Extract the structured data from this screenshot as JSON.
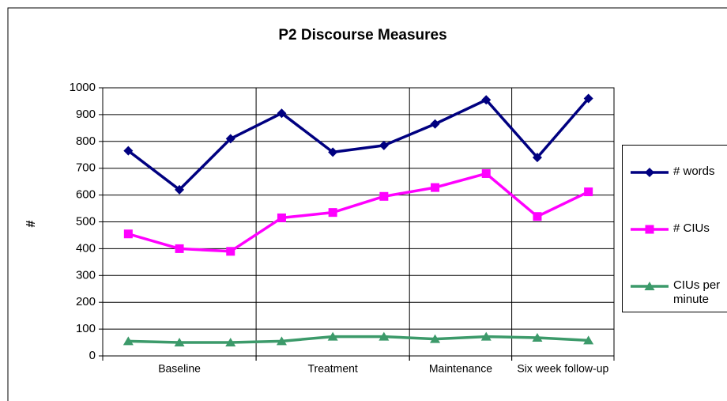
{
  "chart_data": {
    "type": "line",
    "title": "P2 Discourse Measures",
    "y_label": "#",
    "categories": [
      "Baseline",
      null,
      null,
      "Treatment",
      null,
      null,
      "Maintenance",
      null,
      "Six week follow-up",
      null
    ],
    "series": [
      {
        "name": "# words",
        "color": "#000080",
        "marker": "diamond",
        "values": [
          765,
          620,
          810,
          905,
          760,
          785,
          865,
          955,
          740,
          960
        ]
      },
      {
        "name": "# CIUs",
        "color": "#ff00ff",
        "marker": "square",
        "values": [
          455,
          400,
          390,
          515,
          535,
          595,
          628,
          680,
          520,
          612
        ]
      },
      {
        "name": "CIUs per minute",
        "color": "#3c9a6a",
        "marker": "triangle",
        "values": [
          55,
          50,
          50,
          55,
          72,
          72,
          63,
          72,
          68,
          58
        ]
      }
    ],
    "ylim": [
      0,
      1000
    ],
    "yticks": [
      0,
      100,
      200,
      300,
      400,
      500,
      600,
      700,
      800,
      900,
      1000
    ],
    "grid": true,
    "legend": "right"
  }
}
